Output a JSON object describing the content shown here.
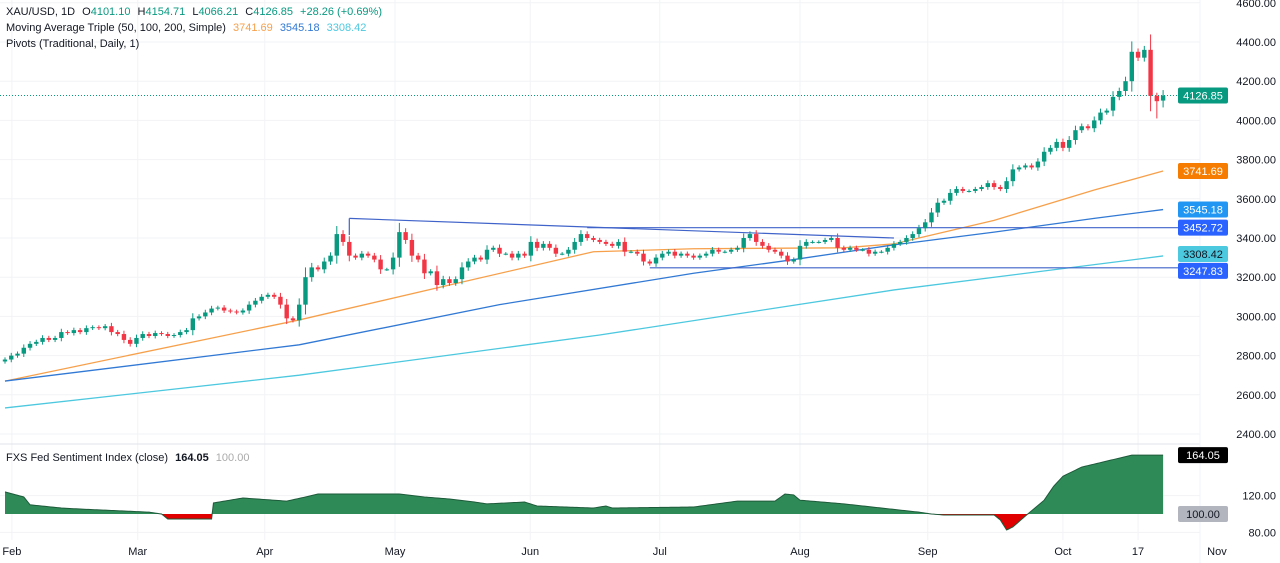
{
  "header": {
    "symbol": "XAU/USD, 1D",
    "open_label": "O",
    "open": "4101.10",
    "high_label": "H",
    "high": "4154.71",
    "low_label": "L",
    "low": "4066.21",
    "close_label": "C",
    "close": "4126.85",
    "change": "+28.26 (+0.69%)"
  },
  "ma_legend": {
    "name": "Moving Average Triple (50, 100, 200, Simple)",
    "ma50": "3741.69",
    "ma100": "3545.18",
    "ma200": "3308.42"
  },
  "pivots_legend": {
    "name": "Pivots (Traditional, Daily, 1)"
  },
  "sentiment_legend": {
    "name": "FXS Fed Sentiment Index (close)",
    "value": "164.05",
    "baseline": "100.00"
  },
  "colors": {
    "up": "#089981",
    "down": "#f23645",
    "ma50": "#f7a04b",
    "ma100": "#3179d4",
    "ma200": "#4cc8df",
    "pivot": "#3f63c9",
    "sentiment_up": "#2e8b57",
    "sentiment_down": "#e00000"
  },
  "chart_data": [
    {
      "type": "candlestick",
      "title": "XAU/USD, 1D",
      "ylim": [
        2300,
        4600
      ],
      "y_ticks": [
        "4600.00",
        "4400.00",
        "4200.00",
        "4000.00",
        "3800.00",
        "3600.00",
        "3400.00",
        "3200.00",
        "3000.00",
        "2800.00",
        "2600.00",
        "2400.00"
      ],
      "x_ticks": [
        "Feb",
        "Mar",
        "Apr",
        "May",
        "Jun",
        "Jul",
        "Aug",
        "Sep",
        "Oct",
        "17",
        "Nov"
      ],
      "grid": true,
      "closes": [
        2780,
        2800,
        2810,
        2840,
        2860,
        2870,
        2890,
        2880,
        2890,
        2920,
        2915,
        2930,
        2920,
        2940,
        2945,
        2940,
        2950,
        2920,
        2910,
        2880,
        2860,
        2890,
        2910,
        2900,
        2915,
        2910,
        2900,
        2905,
        2920,
        2930,
        2990,
        3000,
        3020,
        3040,
        3045,
        3030,
        3025,
        3020,
        3030,
        3060,
        3080,
        3100,
        3110,
        3100,
        3060,
        2990,
        2980,
        3060,
        3200,
        3250,
        3240,
        3280,
        3310,
        3420,
        3380,
        3310,
        3300,
        3320,
        3310,
        3290,
        3240,
        3240,
        3300,
        3430,
        3390,
        3310,
        3290,
        3220,
        3230,
        3160,
        3190,
        3170,
        3190,
        3250,
        3280,
        3300,
        3290,
        3340,
        3350,
        3320,
        3320,
        3300,
        3320,
        3310,
        3380,
        3350,
        3370,
        3350,
        3320,
        3320,
        3340,
        3380,
        3420,
        3400,
        3390,
        3380,
        3370,
        3360,
        3380,
        3330,
        3330,
        3320,
        3280,
        3270,
        3300,
        3320,
        3330,
        3310,
        3320,
        3310,
        3300,
        3310,
        3320,
        3340,
        3330,
        3330,
        3340,
        3350,
        3400,
        3420,
        3380,
        3360,
        3340,
        3330,
        3310,
        3280,
        3290,
        3360,
        3380,
        3380,
        3380,
        3390,
        3400,
        3350,
        3340,
        3350,
        3340,
        3340,
        3320,
        3330,
        3330,
        3350,
        3370,
        3380,
        3400,
        3420,
        3450,
        3480,
        3530,
        3580,
        3590,
        3630,
        3650,
        3640,
        3640,
        3650,
        3660,
        3680,
        3660,
        3650,
        3690,
        3750,
        3760,
        3770,
        3760,
        3790,
        3840,
        3860,
        3890,
        3860,
        3900,
        3950,
        3970,
        3960,
        4000,
        4040,
        4050,
        4120,
        4150,
        4200,
        4350,
        4320,
        4360,
        4125,
        4098,
        4126.85
      ],
      "last_bar": {
        "open": 4101.1,
        "high": 4154.71,
        "low": 4066.21,
        "close": 4126.85
      },
      "last_price_label": "4126.85",
      "moving_averages": [
        {
          "name": "MA 50",
          "last_label": "3741.69",
          "points": [
            [
              0,
              2670
            ],
            [
              47,
              2982
            ],
            [
              71,
              3160
            ],
            [
              94,
              3330
            ],
            [
              110,
              3345
            ],
            [
              134,
              3350
            ],
            [
              142,
              3370
            ],
            [
              158,
              3490
            ],
            [
              174,
              3645
            ],
            [
              185,
              3741.69
            ]
          ]
        },
        {
          "name": "MA 100",
          "last_label": "3545.18",
          "points": [
            [
              0,
              2670
            ],
            [
              47,
              2855
            ],
            [
              79,
              3060
            ],
            [
              110,
              3220
            ],
            [
              126,
              3290
            ],
            [
              142,
              3365
            ],
            [
              158,
              3430
            ],
            [
              174,
              3500
            ],
            [
              185,
              3545.18
            ]
          ]
        },
        {
          "name": "MA 200",
          "last_label": "3308.42",
          "points": [
            [
              0,
              2533
            ],
            [
              47,
              2700
            ],
            [
              95,
              2905
            ],
            [
              142,
              3135
            ],
            [
              185,
              3308.42
            ]
          ]
        }
      ],
      "pivot_levels": [
        {
          "value": 3452.72,
          "label": "3452.72",
          "from_bar": 93
        },
        {
          "value": 3247.83,
          "label": "3247.83",
          "from_bar": 103
        }
      ],
      "trendline": {
        "from": [
          55,
          3500
        ],
        "to": [
          142,
          3400
        ]
      }
    },
    {
      "type": "area",
      "title": "FXS Fed Sentiment Index (close)",
      "baseline": 100,
      "ylim": [
        72,
        172
      ],
      "y_ticks": [
        "120.00",
        "80.00"
      ],
      "last_label": "164.05",
      "baseline_label": "100.00",
      "points": [
        [
          0,
          124
        ],
        [
          3,
          118.5
        ],
        [
          4,
          110
        ],
        [
          9,
          106.5
        ],
        [
          12,
          105.4
        ],
        [
          23,
          102
        ],
        [
          25,
          100
        ],
        [
          26,
          94.6
        ],
        [
          33,
          94.6
        ],
        [
          33.3,
          112
        ],
        [
          38,
          117.4
        ],
        [
          45,
          114
        ],
        [
          48,
          118.5
        ],
        [
          50,
          121.7
        ],
        [
          63,
          121.7
        ],
        [
          67,
          118.5
        ],
        [
          71,
          116.3
        ],
        [
          75,
          113
        ],
        [
          77,
          111
        ],
        [
          83,
          113
        ],
        [
          85,
          108.7
        ],
        [
          94,
          106.5
        ],
        [
          96,
          108.7
        ],
        [
          97,
          106.5
        ],
        [
          110,
          107.6
        ],
        [
          117,
          114
        ],
        [
          123,
          114
        ],
        [
          124.6,
          121.7
        ],
        [
          126,
          120.7
        ],
        [
          127,
          115
        ],
        [
          134,
          111
        ],
        [
          140,
          106.5
        ],
        [
          146,
          102
        ],
        [
          148,
          100
        ],
        [
          150,
          98.9
        ],
        [
          158,
          98.9
        ],
        [
          159,
          93.5
        ],
        [
          160,
          82.6
        ],
        [
          161,
          85.9
        ],
        [
          163,
          97.8
        ],
        [
          166,
          115
        ],
        [
          167.5,
          130
        ],
        [
          169,
          141
        ],
        [
          172,
          151
        ],
        [
          175.4,
          156.5
        ],
        [
          180,
          164
        ],
        [
          185,
          164.05
        ]
      ]
    }
  ]
}
